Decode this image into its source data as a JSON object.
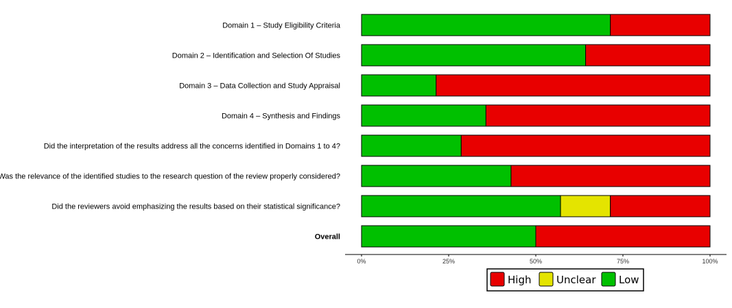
{
  "chart_data": {
    "type": "bar",
    "orientation": "horizontal",
    "stacked": true,
    "title": "",
    "xlabel": "",
    "ylabel": "",
    "xlim": [
      0,
      100
    ],
    "grid": false,
    "legend_position": "bottom",
    "categories": [
      "Domain 1 – Study Eligibility Criteria",
      "Domain 2 – Identification and Selection Of Studies",
      "Domain 3 – Data Collection and Study Appraisal",
      "Domain 4 – Synthesis and Findings",
      "Did the interpretation of the results address all the concerns identified in Domains 1 to 4?",
      "Was the relevance of the identified studies to the research question of the review properly considered?",
      "Did the reviewers avoid emphasizing the results based on their statistical significance?",
      "Overall"
    ],
    "bold_categories": [
      "Overall"
    ],
    "x_ticks": [
      "0%",
      "25%",
      "50%",
      "75%",
      "100%"
    ],
    "series": [
      {
        "name": "Low",
        "color": "#00c000",
        "values": [
          71.4,
          64.3,
          21.4,
          35.7,
          28.6,
          42.9,
          57.1,
          50.0
        ]
      },
      {
        "name": "Unclear",
        "color": "#e4e400",
        "values": [
          0,
          0,
          0,
          0,
          0,
          0,
          14.3,
          0
        ]
      },
      {
        "name": "High",
        "color": "#e80000",
        "values": [
          28.6,
          35.7,
          78.6,
          64.3,
          71.4,
          57.1,
          28.6,
          50.0
        ]
      }
    ],
    "legend": [
      {
        "name": "High",
        "color": "#e80000"
      },
      {
        "name": "Unclear",
        "color": "#e4e400"
      },
      {
        "name": "Low",
        "color": "#00c000"
      }
    ]
  }
}
